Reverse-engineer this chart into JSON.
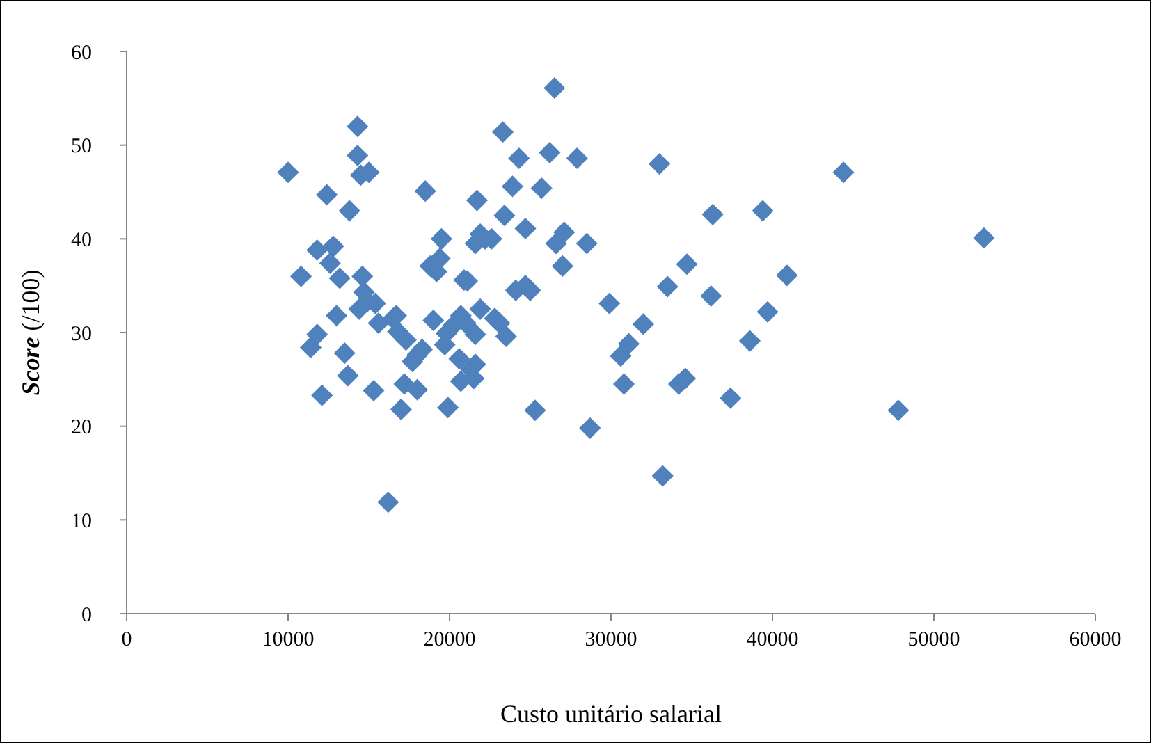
{
  "chart_data": {
    "type": "scatter",
    "xlabel": "Custo unitário salarial",
    "ylabel": "Score (/100)",
    "xlim": [
      0,
      60000
    ],
    "ylim": [
      0,
      60
    ],
    "xticks": [
      0,
      10000,
      20000,
      30000,
      40000,
      50000,
      60000
    ],
    "yticks": [
      0,
      10,
      20,
      30,
      40,
      50,
      60
    ],
    "grid": false,
    "marker": "diamond",
    "series": [
      {
        "color": "#4f81bd",
        "x": [
          10000,
          10800,
          11400,
          11800,
          11800,
          12100,
          12400,
          12600,
          12800,
          13000,
          13200,
          13500,
          13700,
          13800,
          14300,
          14300,
          14500,
          15000,
          14600,
          14700,
          14400,
          14900,
          15400,
          15300,
          15600,
          16500,
          16200,
          16700,
          16800,
          17000,
          17200,
          17300,
          17700,
          18000,
          18000,
          18500,
          18300,
          18800,
          19000,
          19200,
          19400,
          19500,
          19700,
          19800,
          19900,
          20200,
          20600,
          20700,
          20700,
          20900,
          21000,
          21100,
          21300,
          21500,
          21600,
          21600,
          21600,
          21700,
          21900,
          21900,
          22200,
          22600,
          22800,
          23100,
          23300,
          23400,
          23500,
          23900,
          24100,
          24300,
          24700,
          24700,
          25000,
          25300,
          25700,
          26200,
          26500,
          26600,
          27100,
          27000,
          27900,
          28500,
          28700,
          29900,
          30600,
          30800,
          31100,
          32000,
          33000,
          33200,
          33500,
          34200,
          34600,
          34700,
          36200,
          36300,
          37400,
          38600,
          39400,
          39700,
          40900,
          44400,
          47800,
          53100
        ],
        "values": [
          47.1,
          36,
          28.4,
          29.8,
          38.8,
          23.3,
          44.7,
          37.4,
          39.2,
          31.8,
          35.8,
          27.8,
          25.4,
          43,
          52,
          48.9,
          46.8,
          47.1,
          36,
          34.3,
          32.5,
          33.3,
          33.1,
          23.8,
          31,
          31.5,
          11.9,
          31.8,
          30.1,
          21.8,
          24.5,
          29.2,
          26.9,
          27.6,
          23.9,
          45.1,
          28.2,
          37.1,
          31.3,
          36.5,
          37.9,
          40,
          28.7,
          29.9,
          22,
          30.7,
          27.2,
          31.8,
          24.8,
          35.6,
          31,
          35.5,
          26.1,
          25.1,
          29.8,
          26.6,
          39.5,
          44.1,
          32.5,
          40.5,
          40,
          40,
          31.5,
          31,
          51.4,
          42.5,
          29.6,
          45.6,
          34.5,
          48.6,
          41.1,
          35,
          34.5,
          21.7,
          45.4,
          49.2,
          56.1,
          39.5,
          40.7,
          37.1,
          48.6,
          39.5,
          19.8,
          33.1,
          27.5,
          24.5,
          28.8,
          30.9,
          48,
          14.7,
          34.9,
          24.5,
          25.1,
          37.3,
          33.9,
          42.6,
          23,
          29.1,
          43,
          32.2,
          36.1,
          47.1,
          21.7,
          40.1
        ]
      }
    ]
  }
}
